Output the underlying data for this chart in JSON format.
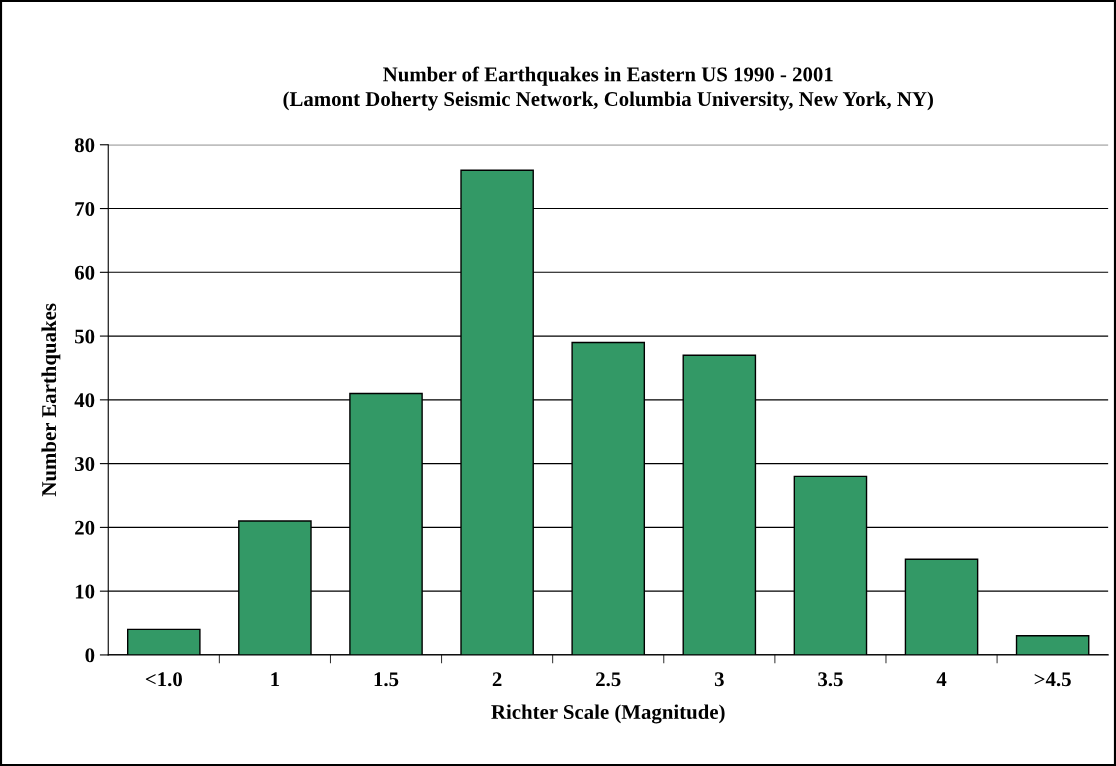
{
  "chart_data": {
    "type": "bar",
    "title": "Number of Earthquakes in Eastern US 1990 - 2001\n(Lamont Doherty Seismic Network, Columbia University, New York, NY)",
    "xlabel": "Richter Scale (Magnitude)",
    "ylabel": "Number Earthquakes",
    "categories": [
      "<1.0",
      "1",
      "1.5",
      "2",
      "2.5",
      "3",
      "3.5",
      "4",
      ">4.5"
    ],
    "values": [
      4,
      21,
      41,
      76,
      49,
      47,
      28,
      15,
      3
    ],
    "color": "#339966",
    "ylim": [
      0,
      80
    ],
    "yticks": [
      0,
      10,
      20,
      30,
      40,
      50,
      60,
      70,
      80
    ],
    "grid": "y",
    "legend": false
  }
}
